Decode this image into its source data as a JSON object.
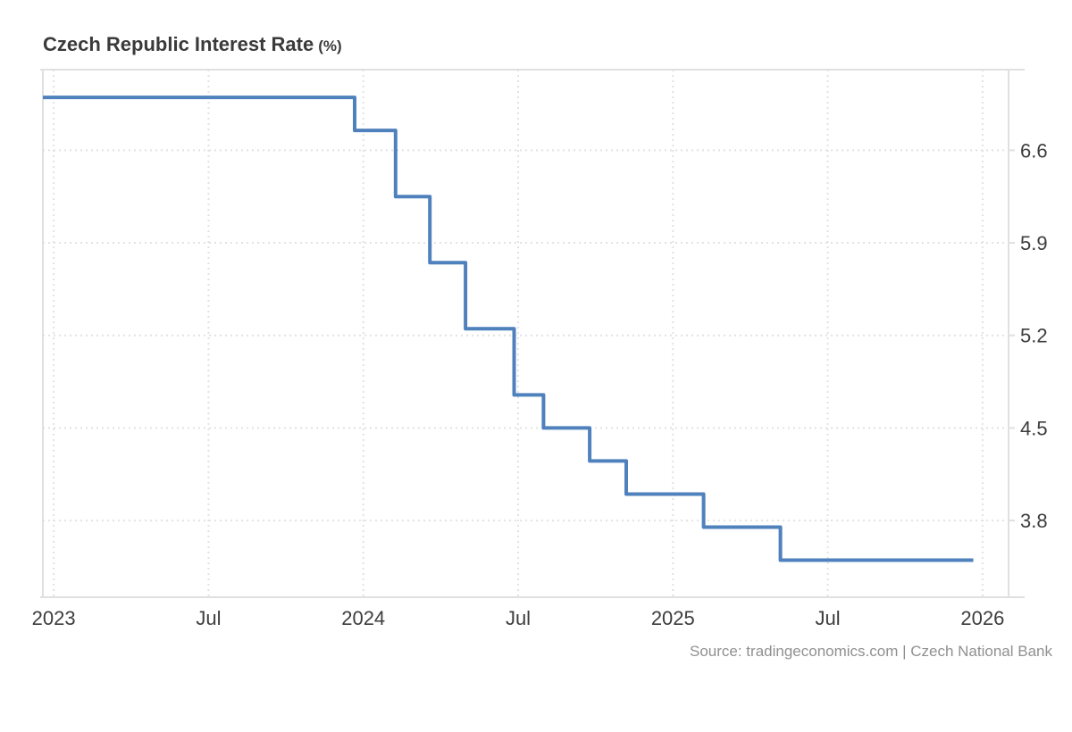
{
  "chart_data": {
    "type": "line",
    "subtype": "step-after",
    "title": "Czech Republic Interest Rate",
    "title_suffix": "(%)",
    "source": "Source: tradingeconomics.com | Czech National Bank",
    "legend": "none",
    "grid": "dotted",
    "x_axis": {
      "min": 2022.965,
      "max": 2026.084,
      "ticks": [
        {
          "t": 2023.0,
          "label": "2023"
        },
        {
          "t": 2023.5,
          "label": "Jul"
        },
        {
          "t": 2024.0,
          "label": "2024"
        },
        {
          "t": 2024.5,
          "label": "Jul"
        },
        {
          "t": 2025.0,
          "label": "2025"
        },
        {
          "t": 2025.5,
          "label": "Jul"
        },
        {
          "t": 2026.0,
          "label": "2026"
        }
      ]
    },
    "y_axis": {
      "min": 3.22,
      "max": 7.21,
      "ticks": [
        {
          "v": 6.6,
          "label": "6.6"
        },
        {
          "v": 5.9,
          "label": "5.9"
        },
        {
          "v": 5.2,
          "label": "5.2"
        },
        {
          "v": 4.5,
          "label": "4.5"
        },
        {
          "v": 3.8,
          "label": "3.8"
        }
      ]
    },
    "series": [
      {
        "name": "Interest Rate (%)",
        "points": [
          {
            "t": 2022.965,
            "v": 7.0,
            "date": "Dec 2022"
          },
          {
            "t": 2023.972,
            "v": 6.75,
            "date": "Dec 2023"
          },
          {
            "t": 2024.104,
            "v": 6.25,
            "date": "Feb 2024"
          },
          {
            "t": 2024.215,
            "v": 5.75,
            "date": "Mar 2024"
          },
          {
            "t": 2024.33,
            "v": 5.25,
            "date": "May 2024"
          },
          {
            "t": 2024.487,
            "v": 4.75,
            "date": "Jun 2024"
          },
          {
            "t": 2024.582,
            "v": 4.5,
            "date": "Aug 2024"
          },
          {
            "t": 2024.731,
            "v": 4.25,
            "date": "Sep 2024"
          },
          {
            "t": 2024.849,
            "v": 4.0,
            "date": "Nov 2024"
          },
          {
            "t": 2025.099,
            "v": 3.75,
            "date": "Feb 2025"
          },
          {
            "t": 2025.347,
            "v": 3.5,
            "date": "May 2025"
          },
          {
            "t": 2025.97,
            "v": 3.5,
            "date": "Dec 2025"
          }
        ]
      }
    ],
    "colors": {
      "line": "#4f81bd",
      "grid": "#e2e2e2",
      "axis_border": "#e0e0e0",
      "tick_label": "#3d3d3d",
      "title": "#3a3a3a",
      "source": "#909090",
      "background": "#ffffff"
    }
  }
}
